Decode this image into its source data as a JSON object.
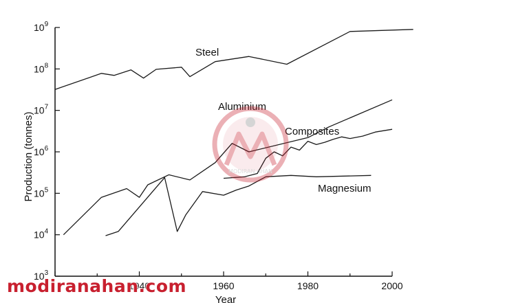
{
  "chart_data": {
    "type": "line",
    "xlabel": "Year",
    "ylabel": "Production (tonnes)",
    "scale": "log",
    "xlim": [
      1920,
      2000
    ],
    "ylim": [
      1000,
      1000000000
    ],
    "x_ticks": [
      "1940",
      "1960",
      "1980",
      "2000"
    ],
    "y_ticks": [
      {
        "base": "10",
        "exp": "3"
      },
      {
        "base": "10",
        "exp": "4"
      },
      {
        "base": "10",
        "exp": "5"
      },
      {
        "base": "10",
        "exp": "6"
      },
      {
        "base": "10",
        "exp": "7"
      },
      {
        "base": "10",
        "exp": "8"
      },
      {
        "base": "10",
        "exp": "9"
      }
    ],
    "grid": false,
    "series": [
      {
        "name": "Steel",
        "x": [
          1920,
          1931,
          1934,
          1938,
          1941,
          1944,
          1950,
          1952,
          1958,
          1966,
          1975,
          1990,
          2005
        ],
        "y": [
          32000000,
          78000000,
          70000000,
          95000000,
          60000000,
          98000000,
          110000000,
          65000000,
          150000000,
          200000000,
          130000000,
          800000000,
          900000000
        ]
      },
      {
        "name": "Aluminium",
        "x": [
          1922,
          1931,
          1937,
          1940,
          1942,
          1947,
          1952,
          1958,
          1962,
          1966,
          1980,
          1985,
          2000
        ],
        "y": [
          10000,
          80000,
          130000,
          80000,
          160000,
          280000,
          210000,
          550000,
          1600000,
          1000000,
          2200000,
          4000000,
          18000000
        ]
      },
      {
        "name": "Composites",
        "x": [
          1960,
          1965,
          1968,
          1970,
          1972,
          1974,
          1976,
          1978,
          1980,
          1982,
          1984,
          1986,
          1988,
          1990,
          1993,
          1996,
          2000
        ],
        "y": [
          230000,
          250000,
          300000,
          700000,
          1000000,
          800000,
          1300000,
          1100000,
          1800000,
          1500000,
          1700000,
          2000000,
          2300000,
          2100000,
          2400000,
          3000000,
          3500000
        ]
      },
      {
        "name": "Magnesium",
        "x": [
          1932,
          1935,
          1946,
          1949,
          1951,
          1955,
          1960,
          1963,
          1966,
          1970,
          1976,
          1982,
          1995
        ],
        "y": [
          9500,
          12000,
          240000,
          12000,
          30000,
          110000,
          90000,
          120000,
          150000,
          250000,
          270000,
          250000,
          270000
        ]
      }
    ]
  },
  "watermark": {
    "site_text": "modiranahan.com",
    "logo_text": "MODIRAN AHAN",
    "color": "#c8202f"
  }
}
